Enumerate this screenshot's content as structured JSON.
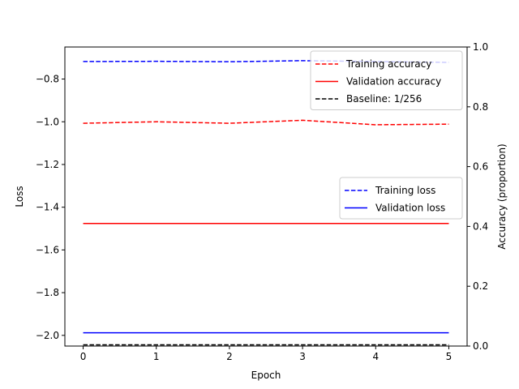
{
  "chart_data": {
    "type": "line",
    "xlabel": "Epoch",
    "ylabel_left": "Loss",
    "ylabel_right": "Accuracy (proportion)",
    "x": [
      0,
      1,
      2,
      3,
      4,
      5
    ],
    "xticks": [
      "0",
      "1",
      "2",
      "3",
      "4",
      "5"
    ],
    "xlim": [
      -0.25,
      5.25
    ],
    "left_axis": {
      "ylim": [
        -2.05,
        -0.65
      ],
      "ticks": [
        -2.0,
        -1.8,
        -1.6,
        -1.4,
        -1.2,
        -1.0,
        -0.8
      ],
      "tick_labels": [
        "−2.0",
        "−1.8",
        "−1.6",
        "−1.4",
        "−1.2",
        "−1.0",
        "−0.8"
      ],
      "series": [
        {
          "name": "Training loss",
          "color": "#0000ff",
          "dash": "dashed",
          "values": [
            -0.718,
            -0.717,
            -0.719,
            -0.714,
            -0.718,
            -0.722
          ]
        },
        {
          "name": "Validation loss",
          "color": "#0000ff",
          "dash": "solid",
          "values": [
            -1.988,
            -1.988,
            -1.988,
            -1.988,
            -1.988,
            -1.988
          ]
        }
      ]
    },
    "right_axis": {
      "ylim": [
        0.0,
        1.0
      ],
      "ticks": [
        0.0,
        0.2,
        0.4,
        0.6,
        0.8,
        1.0
      ],
      "tick_labels": [
        "0.0",
        "0.2",
        "0.4",
        "0.6",
        "0.8",
        "1.0"
      ],
      "series": [
        {
          "name": "Training accuracy",
          "color": "#ff0000",
          "dash": "dashed",
          "values": [
            0.745,
            0.75,
            0.745,
            0.755,
            0.74,
            0.742
          ]
        },
        {
          "name": "Validation accuracy",
          "color": "#ff0000",
          "dash": "solid",
          "values": [
            0.41,
            0.41,
            0.41,
            0.41,
            0.41,
            0.41
          ]
        },
        {
          "name": "Baseline: 1/256",
          "color": "#000000",
          "dash": "dashed",
          "values": [
            0.0039,
            0.0039,
            0.0039,
            0.0039,
            0.0039,
            0.0039
          ]
        }
      ]
    },
    "legends": [
      {
        "placement": "upper-right",
        "entries": [
          "Training accuracy",
          "Validation accuracy",
          "Baseline: 1/256"
        ]
      },
      {
        "placement": "center-right",
        "entries": [
          "Training loss",
          "Validation loss"
        ]
      }
    ],
    "grid": false
  }
}
